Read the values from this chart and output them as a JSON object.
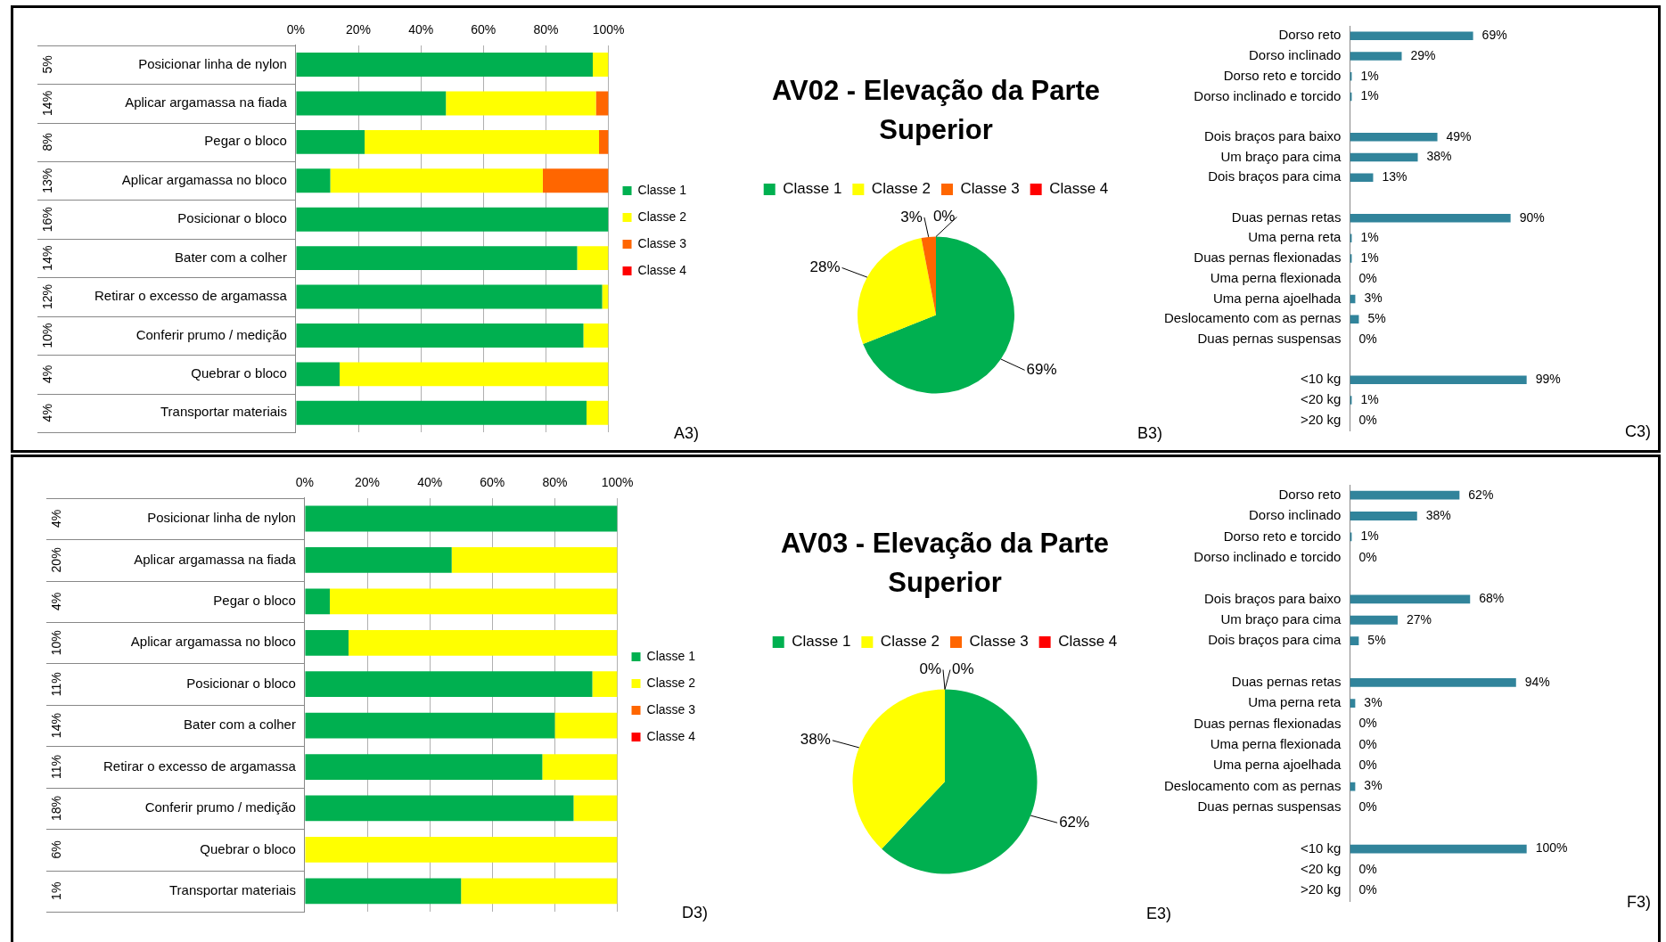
{
  "chart_data": [
    {
      "type": "bar",
      "orientation": "horizontal",
      "stacked": true,
      "categories": [
        "Posicionar linha de nylon",
        "Aplicar argamassa na fiada",
        "Pegar o bloco",
        "Aplicar argamassa no bloco",
        "Posicionar o bloco",
        "Bater com a colher",
        "Retirar o excesso de argamassa",
        "Conferir prumo / medição",
        "Quebrar o bloco",
        "Transportar materiais"
      ],
      "series": [
        {
          "name": "Classe 1",
          "color": "#00b050",
          "values": [
            95,
            48,
            22,
            11,
            100,
            90,
            98,
            92,
            14,
            93
          ]
        },
        {
          "name": "Classe 2",
          "color": "#ffff00",
          "values": [
            5,
            48,
            75,
            68,
            0,
            10,
            2,
            8,
            86,
            7
          ]
        },
        {
          "name": "Classe 3",
          "color": "#ff6600",
          "values": [
            0,
            4,
            3,
            21,
            0,
            0,
            0,
            0,
            0,
            0
          ]
        },
        {
          "name": "Classe 4",
          "color": "#ff0000",
          "values": [
            0,
            0,
            0,
            0,
            0,
            0,
            0,
            0,
            0,
            0
          ]
        }
      ],
      "xlim": [
        0,
        100
      ],
      "xticks": [
        {
          "value": 0,
          "label": "0%"
        },
        {
          "value": 20,
          "label": "20%"
        },
        {
          "value": 40,
          "label": "40%"
        },
        {
          "value": 60,
          "label": "60%"
        },
        {
          "value": 80,
          "label": "80%"
        },
        {
          "value": 100,
          "label": "100%"
        }
      ],
      "grid": "x",
      "legend": "right",
      "annotations": [
        "5%",
        "14%",
        "8%",
        "13%",
        "16%",
        "14%",
        "12%",
        "10%",
        "4%",
        "4%",
        "A3)"
      ]
    },
    {
      "type": "pie",
      "title": "AV02 - Elevação da Parte Superior",
      "categories": [
        "Classe 1",
        "Classe 2",
        "Classe 3",
        "Classe 4"
      ],
      "values": [
        69,
        28,
        3,
        0
      ],
      "colors": [
        "#00b050",
        "#ffff00",
        "#ff6600",
        "#ff0000"
      ],
      "value_labels": [
        "69%",
        "28%",
        "3%",
        "0%"
      ],
      "legend": "top",
      "annotations": [
        "B3)"
      ]
    },
    {
      "type": "bar",
      "orientation": "horizontal",
      "categories": [
        "Dorso reto",
        "Dorso inclinado",
        "Dorso reto e torcido",
        "Dorso inclinado e torcido",
        null,
        "Dois braços para baixo",
        "Um braço para cima",
        "Dois braços para cima",
        null,
        "Duas pernas retas",
        "Uma perna reta",
        "Duas pernas flexionadas",
        "Uma perna flexionada",
        "Uma perna ajoelhada",
        "Deslocamento com as pernas",
        "Duas pernas suspensas",
        null,
        "<10 kg",
        "<20 kg",
        ">20 kg"
      ],
      "values": [
        69,
        29,
        1,
        1,
        null,
        49,
        38,
        13,
        null,
        90,
        1,
        1,
        0,
        3,
        5,
        0,
        null,
        99,
        1,
        0
      ],
      "color": "#31849b",
      "value_labels": [
        "69%",
        "29%",
        "1%",
        "1%",
        null,
        "49%",
        "38%",
        "13%",
        null,
        "90%",
        "1%",
        "1%",
        "0%",
        "3%",
        "5%",
        "0%",
        null,
        "99%",
        "1%",
        "0%"
      ],
      "tick_labels": "y",
      "annotations": [
        "C3)"
      ]
    },
    {
      "type": "bar",
      "orientation": "horizontal",
      "stacked": true,
      "categories": [
        "Posicionar linha de nylon",
        "Aplicar argamassa na fiada",
        "Pegar o bloco",
        "Aplicar argamassa no bloco",
        "Posicionar o bloco",
        "Bater com a colher",
        "Retirar o excesso de argamassa",
        "Conferir prumo / medição",
        "Quebrar o bloco",
        "Transportar materiais"
      ],
      "series": [
        {
          "name": "Classe 1",
          "color": "#00b050",
          "values": [
            100,
            47,
            8,
            14,
            92,
            80,
            76,
            86,
            0,
            50
          ]
        },
        {
          "name": "Classe 2",
          "color": "#ffff00",
          "values": [
            0,
            53,
            92,
            86,
            8,
            20,
            24,
            14,
            100,
            50
          ]
        },
        {
          "name": "Classe 3",
          "color": "#ff6600",
          "values": [
            0,
            0,
            0,
            0,
            0,
            0,
            0,
            0,
            0,
            0
          ]
        },
        {
          "name": "Classe 4",
          "color": "#ff0000",
          "values": [
            0,
            0,
            0,
            0,
            0,
            0,
            0,
            0,
            0,
            0
          ]
        }
      ],
      "xlim": [
        0,
        100
      ],
      "xticks": [
        {
          "value": 0,
          "label": "0%"
        },
        {
          "value": 20,
          "label": "20%"
        },
        {
          "value": 40,
          "label": "40%"
        },
        {
          "value": 60,
          "label": "60%"
        },
        {
          "value": 80,
          "label": "80%"
        },
        {
          "value": 100,
          "label": "100%"
        }
      ],
      "grid": "x",
      "legend": "right",
      "annotations": [
        "4%",
        "20%",
        "4%",
        "10%",
        "11%",
        "14%",
        "11%",
        "18%",
        "6%",
        "1%",
        "D3)"
      ]
    },
    {
      "type": "pie",
      "title": "AV03 - Elevação da Parte Superior",
      "categories": [
        "Classe 1",
        "Classe 2",
        "Classe 3",
        "Classe 4"
      ],
      "values": [
        62,
        38,
        0,
        0
      ],
      "colors": [
        "#00b050",
        "#ffff00",
        "#ff6600",
        "#ff0000"
      ],
      "value_labels": [
        "62%",
        "38%",
        "0%",
        "0%"
      ],
      "legend": "top",
      "annotations": [
        "E3)"
      ]
    },
    {
      "type": "bar",
      "orientation": "horizontal",
      "categories": [
        "Dorso reto",
        "Dorso inclinado",
        "Dorso reto e torcido",
        "Dorso inclinado e torcido",
        null,
        "Dois braços para baixo",
        "Um braço para cima",
        "Dois braços para cima",
        null,
        "Duas pernas retas",
        "Uma perna reta",
        "Duas pernas flexionadas",
        "Uma perna flexionada",
        "Uma perna ajoelhada",
        "Deslocamento com as pernas",
        "Duas pernas suspensas",
        null,
        "<10 kg",
        "<20 kg",
        ">20 kg"
      ],
      "values": [
        62,
        38,
        1,
        0,
        null,
        68,
        27,
        5,
        null,
        94,
        3,
        0,
        0,
        0,
        3,
        0,
        null,
        100,
        0,
        0
      ],
      "color": "#31849b",
      "value_labels": [
        "62%",
        "38%",
        "1%",
        "0%",
        null,
        "68%",
        "27%",
        "5%",
        null,
        "94%",
        "3%",
        "0%",
        "0%",
        "0%",
        "3%",
        "0%",
        null,
        "100%",
        "0%",
        "0%"
      ],
      "tick_labels": "y",
      "annotations": [
        "F3)"
      ]
    }
  ]
}
